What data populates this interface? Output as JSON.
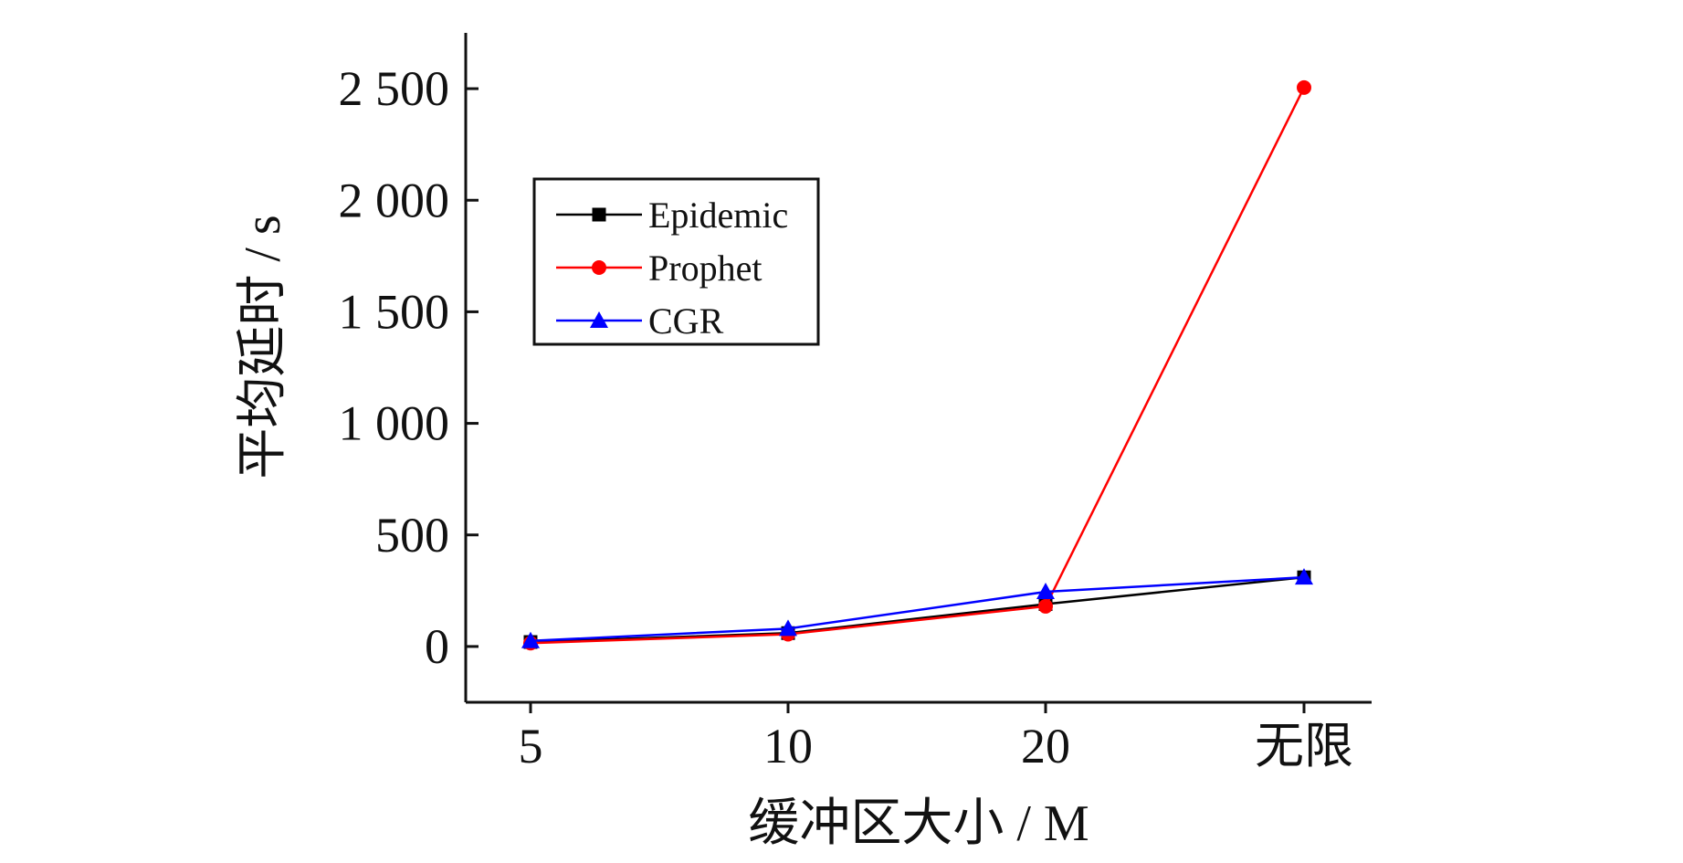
{
  "chart_data": {
    "type": "line",
    "categories": [
      "5",
      "10",
      "20",
      "无限"
    ],
    "series": [
      {
        "name": "Epidemic",
        "color": "#000000",
        "marker": "square",
        "values": [
          20,
          60,
          190,
          310
        ]
      },
      {
        "name": "Prophet",
        "color": "#ff0000",
        "marker": "circle",
        "values": [
          15,
          55,
          180,
          2505
        ]
      },
      {
        "name": "CGR",
        "color": "#0000ff",
        "marker": "triangle",
        "values": [
          25,
          80,
          245,
          310
        ]
      }
    ],
    "xlabel": "缓冲区大小 / M",
    "ylabel": "平均延时 / s",
    "yticks": [
      {
        "value": 0,
        "label": "0"
      },
      {
        "value": 500,
        "label": "500"
      },
      {
        "value": 1000,
        "label": "1 000"
      },
      {
        "value": 1500,
        "label": "1 500"
      },
      {
        "value": 2000,
        "label": "2 000"
      },
      {
        "value": 2500,
        "label": "2 500"
      }
    ],
    "ylim": [
      -250,
      2750
    ],
    "grid": false,
    "legend_position": "top-left"
  }
}
